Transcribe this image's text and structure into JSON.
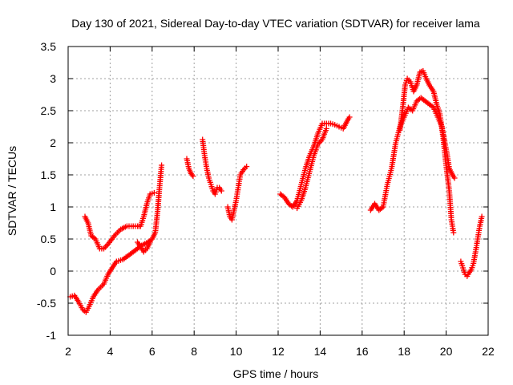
{
  "chart_data": {
    "type": "scatter",
    "title": "Day 130 of 2021, Sidereal Day-to-day VTEC variation (SDTVAR) for receiver lama",
    "xlabel": "GPS time / hours",
    "ylabel": "SDTVAR / TECUs",
    "xlim": [
      2,
      22
    ],
    "ylim": [
      -1,
      3.5
    ],
    "xticks": [
      2,
      4,
      6,
      8,
      10,
      12,
      14,
      16,
      18,
      20,
      22
    ],
    "yticks": [
      -1,
      -0.5,
      0,
      0.5,
      1,
      1.5,
      2,
      2.5,
      3,
      3.5
    ],
    "ytick_labels": [
      "-1",
      "-0.5",
      "0",
      "0.5",
      "1",
      "1.5",
      "2",
      "2.5",
      "3",
      "3.5"
    ],
    "grid": true,
    "marker": "+",
    "color": "#ff0000",
    "series": [
      {
        "name": "seg-a",
        "points": [
          [
            2.1,
            -0.4
          ],
          [
            2.3,
            -0.38
          ],
          [
            2.5,
            -0.48
          ],
          [
            2.7,
            -0.6
          ],
          [
            2.85,
            -0.64
          ],
          [
            3.0,
            -0.55
          ],
          [
            3.2,
            -0.4
          ],
          [
            3.4,
            -0.3
          ],
          [
            3.7,
            -0.2
          ],
          [
            3.9,
            -0.05
          ],
          [
            4.1,
            0.05
          ],
          [
            4.3,
            0.15
          ],
          [
            4.6,
            0.18
          ],
          [
            4.9,
            0.25
          ],
          [
            5.1,
            0.3
          ],
          [
            5.3,
            0.35
          ],
          [
            5.5,
            0.4
          ],
          [
            5.8,
            0.45
          ],
          [
            6.0,
            0.5
          ],
          [
            6.15,
            0.6
          ],
          [
            6.25,
            0.9
          ],
          [
            6.35,
            1.3
          ],
          [
            6.45,
            1.65
          ]
        ]
      },
      {
        "name": "seg-b",
        "points": [
          [
            2.8,
            0.85
          ],
          [
            2.95,
            0.75
          ],
          [
            3.1,
            0.55
          ],
          [
            3.3,
            0.5
          ],
          [
            3.5,
            0.35
          ],
          [
            3.7,
            0.35
          ],
          [
            3.9,
            0.42
          ],
          [
            4.2,
            0.55
          ],
          [
            4.5,
            0.65
          ],
          [
            4.8,
            0.7
          ],
          [
            5.1,
            0.7
          ],
          [
            5.3,
            0.7
          ],
          [
            5.45,
            0.7
          ],
          [
            5.6,
            0.85
          ],
          [
            5.75,
            1.05
          ],
          [
            5.9,
            1.2
          ],
          [
            6.1,
            1.22
          ]
        ]
      },
      {
        "name": "seg-c",
        "points": [
          [
            5.3,
            0.45
          ],
          [
            5.45,
            0.38
          ],
          [
            5.6,
            0.3
          ],
          [
            5.75,
            0.35
          ],
          [
            5.9,
            0.45
          ]
        ]
      },
      {
        "name": "seg-d",
        "points": [
          [
            7.65,
            1.75
          ],
          [
            7.75,
            1.6
          ],
          [
            7.85,
            1.52
          ],
          [
            7.95,
            1.48
          ]
        ]
      },
      {
        "name": "seg-e",
        "points": [
          [
            8.4,
            2.05
          ],
          [
            8.5,
            1.8
          ],
          [
            8.6,
            1.6
          ],
          [
            8.7,
            1.45
          ],
          [
            8.8,
            1.35
          ],
          [
            8.9,
            1.25
          ],
          [
            9.0,
            1.2
          ],
          [
            9.1,
            1.3
          ],
          [
            9.2,
            1.3
          ],
          [
            9.3,
            1.25
          ]
        ]
      },
      {
        "name": "seg-f",
        "points": [
          [
            9.6,
            1.0
          ],
          [
            9.7,
            0.85
          ],
          [
            9.8,
            0.8
          ],
          [
            9.9,
            0.95
          ],
          [
            10.0,
            1.1
          ],
          [
            10.1,
            1.3
          ],
          [
            10.2,
            1.5
          ],
          [
            10.35,
            1.58
          ],
          [
            10.5,
            1.63
          ]
        ]
      },
      {
        "name": "seg-g",
        "points": [
          [
            12.1,
            1.2
          ],
          [
            12.3,
            1.15
          ],
          [
            12.5,
            1.05
          ],
          [
            12.7,
            1.0
          ],
          [
            12.9,
            1.1
          ],
          [
            13.1,
            1.35
          ],
          [
            13.3,
            1.6
          ],
          [
            13.5,
            1.8
          ],
          [
            13.7,
            1.95
          ],
          [
            13.9,
            2.15
          ],
          [
            14.1,
            2.3
          ],
          [
            14.3,
            2.3
          ],
          [
            14.5,
            2.3
          ],
          [
            14.7,
            2.28
          ],
          [
            14.9,
            2.25
          ],
          [
            15.1,
            2.22
          ],
          [
            15.3,
            2.35
          ],
          [
            15.4,
            2.4
          ]
        ]
      },
      {
        "name": "seg-h",
        "points": [
          [
            12.9,
            0.98
          ],
          [
            13.1,
            1.1
          ],
          [
            13.3,
            1.3
          ],
          [
            13.5,
            1.55
          ],
          [
            13.7,
            1.8
          ],
          [
            13.9,
            1.98
          ],
          [
            14.1,
            2.05
          ],
          [
            14.3,
            2.22
          ]
        ]
      },
      {
        "name": "seg-i",
        "points": [
          [
            16.4,
            0.95
          ],
          [
            16.6,
            1.05
          ],
          [
            16.8,
            0.95
          ],
          [
            17.0,
            1.0
          ],
          [
            17.2,
            1.35
          ],
          [
            17.4,
            1.6
          ],
          [
            17.6,
            2.0
          ],
          [
            17.8,
            2.25
          ],
          [
            18.0,
            2.4
          ],
          [
            18.2,
            2.55
          ],
          [
            18.4,
            2.5
          ],
          [
            18.6,
            2.65
          ],
          [
            18.8,
            2.7
          ],
          [
            19.0,
            2.65
          ],
          [
            19.2,
            2.6
          ],
          [
            19.4,
            2.55
          ],
          [
            19.6,
            2.4
          ],
          [
            19.8,
            2.25
          ],
          [
            20.0,
            1.9
          ],
          [
            20.15,
            1.6
          ],
          [
            20.3,
            1.5
          ],
          [
            20.4,
            1.45
          ]
        ]
      },
      {
        "name": "seg-j",
        "points": [
          [
            17.8,
            2.2
          ],
          [
            17.95,
            2.6
          ],
          [
            18.05,
            2.9
          ],
          [
            18.15,
            3.0
          ],
          [
            18.3,
            2.95
          ],
          [
            18.45,
            2.8
          ],
          [
            18.6,
            2.9
          ],
          [
            18.75,
            3.1
          ],
          [
            18.9,
            3.12
          ],
          [
            19.05,
            3.0
          ],
          [
            19.2,
            2.9
          ],
          [
            19.4,
            2.8
          ],
          [
            19.55,
            2.6
          ],
          [
            19.7,
            2.45
          ],
          [
            19.85,
            2.1
          ],
          [
            20.0,
            1.65
          ],
          [
            20.15,
            1.25
          ],
          [
            20.25,
            0.8
          ],
          [
            20.35,
            0.6
          ]
        ]
      },
      {
        "name": "seg-k",
        "points": [
          [
            20.7,
            0.15
          ],
          [
            20.8,
            0.05
          ],
          [
            20.9,
            -0.05
          ],
          [
            21.0,
            -0.08
          ],
          [
            21.1,
            -0.02
          ],
          [
            21.2,
            0.02
          ],
          [
            21.3,
            0.12
          ],
          [
            21.4,
            0.3
          ],
          [
            21.5,
            0.5
          ],
          [
            21.6,
            0.7
          ],
          [
            21.7,
            0.85
          ]
        ]
      }
    ]
  }
}
